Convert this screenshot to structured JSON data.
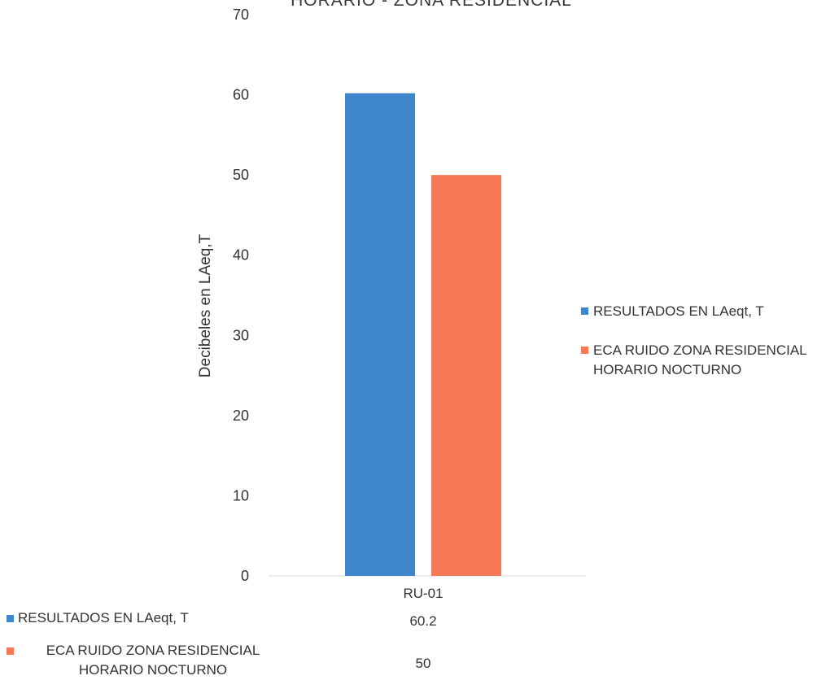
{
  "chart_data": {
    "type": "bar",
    "title": "HORARIO - ZONA RESIDENCIAL",
    "categories": [
      "RU-01"
    ],
    "series": [
      {
        "name": "RESULTADOS EN LAeqt, T",
        "values": [
          60.2
        ],
        "color": "#3f86cb"
      },
      {
        "name": "ECA RUIDO ZONA RESIDENCIAL HORARIO NOCTURNO",
        "values": [
          50
        ],
        "color": "#f47954"
      }
    ],
    "xlabel": "",
    "ylabel": "Decibeles en LAeq,T",
    "ylim": [
      0,
      70
    ],
    "yticks": [
      0,
      10,
      20,
      30,
      40,
      50,
      60,
      70
    ],
    "grid": false,
    "legend_position": "right",
    "data_table": true,
    "table_values": [
      "60.2",
      "50"
    ]
  }
}
